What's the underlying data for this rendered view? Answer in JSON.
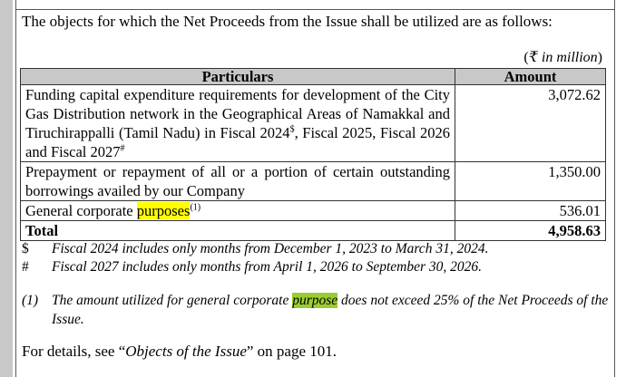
{
  "intro": "The objects for which the Net Proceeds from the Issue shall be utilized are as follows:",
  "unit_open": "(",
  "unit": "₹ in million",
  "unit_close": ")",
  "table": {
    "headers": [
      "Particulars",
      "Amount"
    ],
    "rows": [
      {
        "pre": "Funding capital expenditure requirements for development of the City Gas Distribution network in the Geographical Areas of Namakkal and Tiruchirappalli (Tamil Nadu) in Fiscal 2024",
        "sup1": "$",
        "mid": ", Fiscal 2025, Fiscal 2026 and Fiscal 2027",
        "sup2": "#",
        "amount": "3,072.62"
      },
      {
        "pre": "Prepayment or repayment of all or a portion of certain outstanding borrowings availed by our Company",
        "amount": "1,350.00"
      },
      {
        "pre": "General corporate ",
        "highlight": "purposes",
        "sup1": "(1)",
        "amount": "536.01"
      }
    ],
    "total": {
      "label": "Total",
      "amount": "4,958.63"
    }
  },
  "footnotes": [
    {
      "mark": "$",
      "text": "Fiscal 2024 includes only months from December 1, 2023 to March 31, 2024."
    },
    {
      "mark": "#",
      "text": "Fiscal 2027 includes only months from April 1, 2026 to September 30, 2026."
    }
  ],
  "note": {
    "mark": "(1)",
    "pre": "The amount utilized for general corporate ",
    "highlight": "purpose",
    "post": " does not exceed 25% of the Net Proceeds of the Issue."
  },
  "details": {
    "pre": "For details, see “",
    "link": "Objects of the Issue",
    "post": "” on page 101."
  },
  "colors": {
    "highlight_yellow": "#ffff00",
    "highlight_green": "#9acd32",
    "header_bg": "#c8c8c8"
  }
}
